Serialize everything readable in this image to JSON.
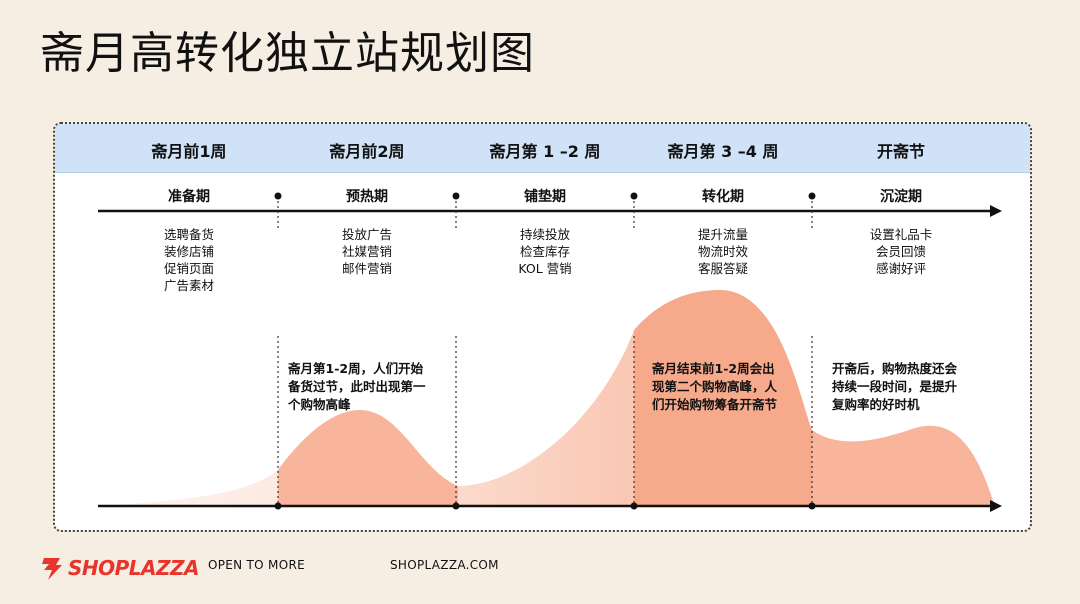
{
  "title": "斋月高转化独立站规划图",
  "columns": [
    {
      "period": "斋月前1周",
      "phase": "准备期",
      "tasks": [
        "选聘备货",
        "装修店铺",
        "促销页面",
        "广告素材"
      ]
    },
    {
      "period": "斋月前2周",
      "phase": "预热期",
      "tasks": [
        "投放广告",
        "社媒营销",
        "邮件营销"
      ]
    },
    {
      "period": "斋月第 1 –2 周",
      "phase": "铺垫期",
      "tasks": [
        "持续投放",
        "检查库存",
        "KOL 营销"
      ]
    },
    {
      "period": "斋月第 3 –4 周",
      "phase": "转化期",
      "tasks": [
        "提升流量",
        "物流时效",
        "客服答疑"
      ]
    },
    {
      "period": "开斋节",
      "phase": "沉淀期",
      "tasks": [
        "设置礼品卡",
        "会员回馈",
        "感谢好评"
      ]
    }
  ],
  "notes": {
    "peak1": [
      "斋月第1-2周，人们开始",
      "备货过节，此时出现第一",
      "个购物高峰"
    ],
    "peak2": [
      "斋月结束前1-2周会出",
      "现第二个购物高峰，人",
      "们开始购物筹备开斋节"
    ],
    "after": [
      "开斋后，购物热度还会",
      "持续一段时间，是提升",
      "复购率的好时机"
    ]
  },
  "footer": {
    "brand": "SHOPLAZZA",
    "slogan": "OPEN TO MORE",
    "website": "SHOPLAZZA.COM"
  },
  "colors": {
    "background": "#f6eee2",
    "header_band": "#cfe2f7",
    "curve_light": "#fde0d4",
    "curve_strong": "#f6a98b",
    "brand_red": "#e8342a"
  }
}
